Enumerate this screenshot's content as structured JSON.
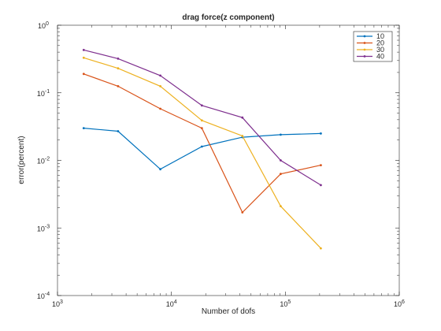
{
  "chart_data": {
    "type": "line",
    "title": "drag force(z component)",
    "xlabel": "Number of dofs",
    "ylabel": "error(percent)",
    "xscale": "log",
    "yscale": "log",
    "xlim": [
      1000,
      1000000
    ],
    "ylim": [
      0.0001,
      1
    ],
    "legend_position": "top-right",
    "grid": false,
    "x_ticks": [
      {
        "value": 1000,
        "base": "10",
        "exp": "3"
      },
      {
        "value": 10000,
        "base": "10",
        "exp": "4"
      },
      {
        "value": 100000,
        "base": "10",
        "exp": "5"
      },
      {
        "value": 1000000,
        "base": "10",
        "exp": "6"
      }
    ],
    "y_ticks": [
      {
        "value": 0.0001,
        "base": "10",
        "exp": "-4"
      },
      {
        "value": 0.001,
        "base": "10",
        "exp": "-3"
      },
      {
        "value": 0.01,
        "base": "10",
        "exp": "-2"
      },
      {
        "value": 0.1,
        "base": "10",
        "exp": "-1"
      },
      {
        "value": 1,
        "base": "10",
        "exp": "0"
      }
    ],
    "series": [
      {
        "name": "10",
        "color": "#0072BD",
        "x": [
          1700,
          3400,
          8000,
          18500,
          42000,
          91000,
          205000
        ],
        "y": [
          0.03,
          0.027,
          0.0074,
          0.016,
          0.022,
          0.024,
          0.025
        ]
      },
      {
        "name": "20",
        "color": "#D95319",
        "x": [
          1700,
          3400,
          8000,
          18500,
          42000,
          91000,
          205000
        ],
        "y": [
          0.19,
          0.125,
          0.058,
          0.03,
          0.0017,
          0.0063,
          0.0085
        ]
      },
      {
        "name": "30",
        "color": "#EDB120",
        "x": [
          1700,
          3400,
          8000,
          18500,
          42000,
          91000,
          205000
        ],
        "y": [
          0.33,
          0.23,
          0.125,
          0.039,
          0.023,
          0.0021,
          0.0005
        ]
      },
      {
        "name": "40",
        "color": "#7E2F8E",
        "x": [
          1700,
          3400,
          8000,
          18500,
          42000,
          91000,
          205000
        ],
        "y": [
          0.43,
          0.32,
          0.18,
          0.065,
          0.043,
          0.01,
          0.0043
        ]
      }
    ]
  }
}
